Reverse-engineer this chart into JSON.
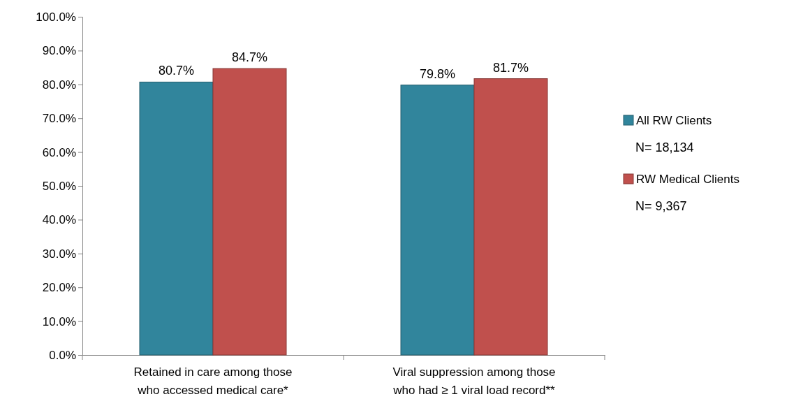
{
  "chart_data": {
    "type": "bar",
    "categories": [
      "Retained in care among those who accessed medical care*",
      "Viral suppression among those who had ≥ 1 viral load record**"
    ],
    "series": [
      {
        "name": "All RW Clients",
        "color": "#31859c",
        "values": [
          80.7,
          79.8
        ],
        "value_labels": [
          "80.7%",
          "79.8%"
        ]
      },
      {
        "name": "RW Medical Clients",
        "color": "#c0504d",
        "values": [
          84.7,
          81.7
        ],
        "value_labels": [
          "84.7%",
          "81.7%"
        ]
      }
    ],
    "ylim": [
      0,
      100
    ],
    "yticks": [
      {
        "value": 0,
        "label": "0.0%"
      },
      {
        "value": 10,
        "label": "10.0%"
      },
      {
        "value": 20,
        "label": "20.0%"
      },
      {
        "value": 30,
        "label": "30.0%"
      },
      {
        "value": 40,
        "label": "40.0%"
      },
      {
        "value": 50,
        "label": "50.0%"
      },
      {
        "value": 60,
        "label": "60.0%"
      },
      {
        "value": 70,
        "label": "70.0%"
      },
      {
        "value": 80,
        "label": "80.0%"
      },
      {
        "value": 90,
        "label": "90.0%"
      },
      {
        "value": 100,
        "label": "100.0%"
      }
    ],
    "annotations": [
      "N= 18,134",
      "N= 9,367"
    ],
    "legend": "right"
  }
}
